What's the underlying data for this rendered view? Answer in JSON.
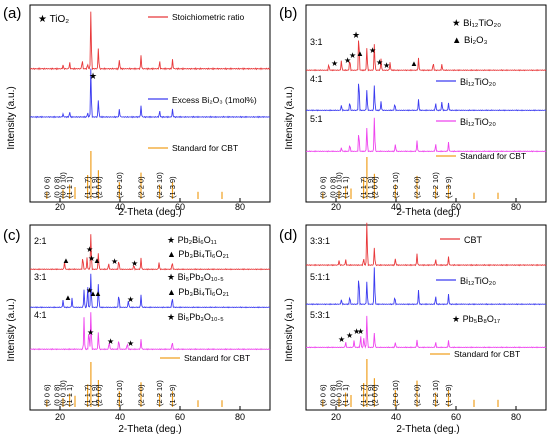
{
  "figure": {
    "panels": [
      {
        "id": "a",
        "label": "(a)",
        "xlabel": "2-Theta (deg.)",
        "ylabel": "Intensity (a.u.)",
        "xticks": [
          "20",
          "40",
          "60",
          "80"
        ],
        "legend": [
          "Stoichiometric ratio",
          "Excess Bi₂O₃ (1mol%)",
          "Standard for CBT"
        ],
        "notes": [
          "★ TiO₂"
        ],
        "row_labels": [],
        "hkl": [
          "(0 0 6)",
          "(0 0 8)",
          "(0 0 10)",
          "(1 1 1)",
          "(1 1 7)",
          "(1 1 9)",
          "(2 0 0)",
          "(2 0 10)",
          "(2 2 0)",
          "(2 2 10)",
          "(1 3 9)"
        ]
      },
      {
        "id": "b",
        "label": "(b)",
        "xlabel": "2-Theta (deg.)",
        "ylabel": "Intensity (a.u.)",
        "xticks": [
          "20",
          "40",
          "60",
          "80"
        ],
        "legend": [
          "Bi₁₂TiO₂₀",
          "Bi₁₂TiO₂₀",
          "Standard for CBT"
        ],
        "notes": [
          "★ Bi₁₂TiO₂₀",
          "▲ Bi₂O₃"
        ],
        "row_labels": [
          "3:1",
          "4:1",
          "5:1"
        ],
        "hkl": [
          "(0 0 6)",
          "(0 0 8)",
          "(0 0 10)",
          "(1 1 1)",
          "(1 1 7)",
          "(1 1 9)",
          "(2 0 0)",
          "(2 0 10)",
          "(2 2 0)",
          "(2 2 10)",
          "(1 3 9)"
        ]
      },
      {
        "id": "c",
        "label": "(c)",
        "xlabel": "2-Theta (deg.)",
        "ylabel": "Intensity (a.u.)",
        "xticks": [
          "20",
          "40",
          "60",
          "80"
        ],
        "legend": [
          "Standard for CBT"
        ],
        "notes": [
          "★ Pb₂Bi₆O₁₁",
          "▲ Pb₃Bi₄Ti₆O₂₁",
          "★ Bi₅Pb₃O₁₀.₅",
          "▲ Pb₃Bi₄Ti₆O₂₁",
          "★ Bi₅Pb₃O₁₀.₅"
        ],
        "row_labels": [
          "2:1",
          "3:1",
          "4:1"
        ],
        "hkl": [
          "(0 0 6)",
          "(0 0 8)",
          "(0 0 10)",
          "(1 1 1)",
          "(1 1 7)",
          "(1 1 9)",
          "(2 0 0)",
          "(2 0 10)",
          "(2 2 0)",
          "(2 2 10)",
          "(1 3 9)"
        ]
      },
      {
        "id": "d",
        "label": "(d)",
        "xlabel": "2-Theta (deg.)",
        "ylabel": "Intensity (a.u.)",
        "xticks": [
          "20",
          "40",
          "60",
          "80"
        ],
        "legend": [
          "CBT",
          "Bi₁₂TiO₂₀",
          "Standard for CBT"
        ],
        "notes": [
          "★ Pb₅B₈O₁₇"
        ],
        "row_labels": [
          "3:3:1",
          "5:1:1",
          "5:3:1"
        ],
        "hkl": [
          "(0 0 6)",
          "(0 0 8)",
          "(0 0 10)",
          "(1 1 1)",
          "(1 1 7)",
          "(1 1 9)",
          "(2 0 0)",
          "(2 0 10)",
          "(2 2 0)",
          "(2 2 10)",
          "(1 3 9)"
        ]
      }
    ]
  },
  "chart_data": [
    {
      "type": "line",
      "panel": "(a)",
      "xlabel": "2-Theta (deg.)",
      "ylabel": "Intensity (a.u.)",
      "xlim": [
        10,
        90
      ],
      "x_ticks": [
        20,
        40,
        60,
        80
      ],
      "y_ticks": "none",
      "grid": false,
      "legend_position": "top-right",
      "series": [
        {
          "name": "Stoichiometric ratio",
          "color": "#e8383a",
          "peaks_2theta": [
            21,
            23.2,
            27.4,
            29.2,
            30.3,
            32.8,
            39.8,
            47.0,
            53.2,
            57.5
          ],
          "peaks_intensity": [
            0.06,
            0.1,
            0.15,
            0.08,
            1.0,
            0.35,
            0.15,
            0.22,
            0.12,
            0.15
          ]
        },
        {
          "name": "Excess Bi₂O₃ (1mol%)",
          "color": "#3c3cf0",
          "peaks_2theta": [
            21,
            23.2,
            29.2,
            30.3,
            32.8,
            39.8,
            47.0,
            53.2,
            57.5
          ],
          "peaks_intensity": [
            0.06,
            0.1,
            0.08,
            1.0,
            0.35,
            0.15,
            0.22,
            0.12,
            0.15
          ]
        },
        {
          "name": "Standard for CBT",
          "color": "#f0a020",
          "peaks_2theta": [
            15.6,
            21,
            23.2,
            25,
            29.2,
            30.3,
            32.8,
            39.8,
            47.0,
            53.2,
            57.5,
            66,
            74
          ],
          "peaks_intensity": [
            0.15,
            0.2,
            0.3,
            0.25,
            0.5,
            1.0,
            0.6,
            0.35,
            0.55,
            0.3,
            0.35,
            0.15,
            0.15
          ]
        }
      ]
    },
    {
      "type": "line",
      "panel": "(b)",
      "xlabel": "2-Theta (deg.)",
      "ylabel": "Intensity (a.u.)",
      "xlim": [
        10,
        90
      ],
      "x_ticks": [
        20,
        40,
        60,
        80
      ],
      "y_ticks": "none",
      "grid": false,
      "legend_position": "top-right",
      "series": [
        {
          "name": "3:1",
          "color": "#e8383a",
          "peaks_2theta": [
            17.6,
            21.8,
            24.6,
            27.6,
            30.3,
            32.8,
            35.0,
            38.0,
            47.5,
            52.4,
            55.3
          ],
          "peaks_intensity": [
            0.15,
            0.25,
            0.3,
            1.0,
            0.6,
            0.7,
            0.3,
            0.2,
            0.3,
            0.2,
            0.15
          ]
        },
        {
          "name": "4:1",
          "color": "#3c3cf0",
          "peaks_2theta": [
            21.8,
            24.6,
            27.6,
            30.3,
            32.8,
            35.0,
            39.6,
            47.5,
            53.2,
            55.3,
            57.5
          ],
          "peaks_intensity": [
            0.15,
            0.25,
            1.0,
            0.6,
            0.75,
            0.25,
            0.2,
            0.3,
            0.2,
            0.25,
            0.2
          ]
        },
        {
          "name": "5:1",
          "color": "#ee44ee",
          "peaks_2theta": [
            21.8,
            24.6,
            27.6,
            30.3,
            32.8,
            39.8,
            47.0,
            53.2,
            57.5
          ],
          "peaks_intensity": [
            0.1,
            0.2,
            0.6,
            0.7,
            1.0,
            0.2,
            0.3,
            0.2,
            0.25
          ]
        },
        {
          "name": "Standard for CBT",
          "color": "#f0a020",
          "peaks_2theta": [
            15.6,
            21,
            23.2,
            25,
            29.2,
            30.3,
            32.8,
            39.8,
            47.0,
            53.2,
            57.5,
            66,
            74
          ],
          "peaks_intensity": [
            0.15,
            0.2,
            0.3,
            0.25,
            0.5,
            1.0,
            0.6,
            0.35,
            0.55,
            0.3,
            0.35,
            0.15,
            0.15
          ]
        }
      ]
    },
    {
      "type": "line",
      "panel": "(c)",
      "xlabel": "2-Theta (deg.)",
      "ylabel": "Intensity (a.u.)",
      "xlim": [
        10,
        90
      ],
      "x_ticks": [
        20,
        40,
        60,
        80
      ],
      "y_ticks": "none",
      "grid": false,
      "legend_position": "top-right",
      "series": [
        {
          "name": "2:1",
          "color": "#e8383a",
          "peaks_2theta": [
            21.5,
            27.6,
            29.0,
            30.3,
            32.8,
            36.2,
            39.6,
            44.6,
            47.0,
            53.0,
            57.4
          ],
          "peaks_intensity": [
            0.2,
            0.35,
            0.3,
            1.0,
            0.45,
            0.15,
            0.25,
            0.12,
            0.3,
            0.18,
            0.2
          ]
        },
        {
          "name": "3:1",
          "color": "#3c3cf0",
          "peaks_2theta": [
            21.0,
            24.0,
            28.0,
            29.2,
            30.3,
            32.8,
            39.6,
            42.8,
            47.0,
            57.4
          ],
          "peaks_intensity": [
            0.2,
            0.25,
            0.5,
            0.6,
            1.0,
            0.7,
            0.4,
            0.2,
            0.35,
            0.3
          ]
        },
        {
          "name": "4:1",
          "color": "#ee44ee",
          "peaks_2theta": [
            28.0,
            29.6,
            30.3,
            32.8,
            36.4,
            39.6,
            42.4,
            47.0,
            57.4
          ],
          "peaks_intensity": [
            0.8,
            0.5,
            1.0,
            0.45,
            0.2,
            0.25,
            0.15,
            0.25,
            0.2
          ]
        },
        {
          "name": "Standard for CBT",
          "color": "#f0a020",
          "peaks_2theta": [
            15.6,
            21,
            23.2,
            25,
            29.2,
            30.3,
            32.8,
            39.8,
            47.0,
            53.2,
            57.5,
            66,
            74
          ],
          "peaks_intensity": [
            0.15,
            0.2,
            0.3,
            0.25,
            0.5,
            1.0,
            0.6,
            0.35,
            0.55,
            0.3,
            0.35,
            0.15,
            0.15
          ]
        }
      ]
    },
    {
      "type": "line",
      "panel": "(d)",
      "xlabel": "2-Theta (deg.)",
      "ylabel": "Intensity (a.u.)",
      "xlim": [
        10,
        90
      ],
      "x_ticks": [
        20,
        40,
        60,
        80
      ],
      "y_ticks": "none",
      "grid": false,
      "legend_position": "top-right",
      "series": [
        {
          "name": "3:3:1",
          "color": "#e8383a",
          "peaks_2theta": [
            21,
            23.2,
            29.2,
            30.3,
            32.8,
            39.8,
            47.0,
            53.2,
            57.5
          ],
          "peaks_intensity": [
            0.1,
            0.12,
            0.15,
            1.0,
            0.4,
            0.15,
            0.25,
            0.12,
            0.18
          ]
        },
        {
          "name": "5:1:1",
          "color": "#3c3cf0",
          "peaks_2theta": [
            21.8,
            24.6,
            27.6,
            30.3,
            32.8,
            39.6,
            47.5,
            53.2,
            57.5
          ],
          "peaks_intensity": [
            0.12,
            0.2,
            0.8,
            0.6,
            1.0,
            0.2,
            0.35,
            0.2,
            0.25
          ]
        },
        {
          "name": "5:3:1",
          "color": "#ee44ee",
          "peaks_2theta": [
            23.2,
            26.0,
            28.2,
            29.3,
            30.3,
            32.8,
            39.8,
            47.0,
            53.2,
            57.5
          ],
          "peaks_intensity": [
            0.15,
            0.2,
            0.35,
            0.3,
            1.0,
            0.45,
            0.15,
            0.22,
            0.15,
            0.2
          ]
        },
        {
          "name": "Standard for CBT",
          "color": "#f0a020",
          "peaks_2theta": [
            15.6,
            21,
            23.2,
            25,
            29.2,
            30.3,
            32.8,
            39.8,
            47.0,
            53.2,
            57.5,
            66,
            74
          ],
          "peaks_intensity": [
            0.15,
            0.2,
            0.3,
            0.25,
            0.5,
            1.0,
            0.6,
            0.35,
            0.55,
            0.3,
            0.35,
            0.15,
            0.15
          ]
        }
      ]
    }
  ]
}
